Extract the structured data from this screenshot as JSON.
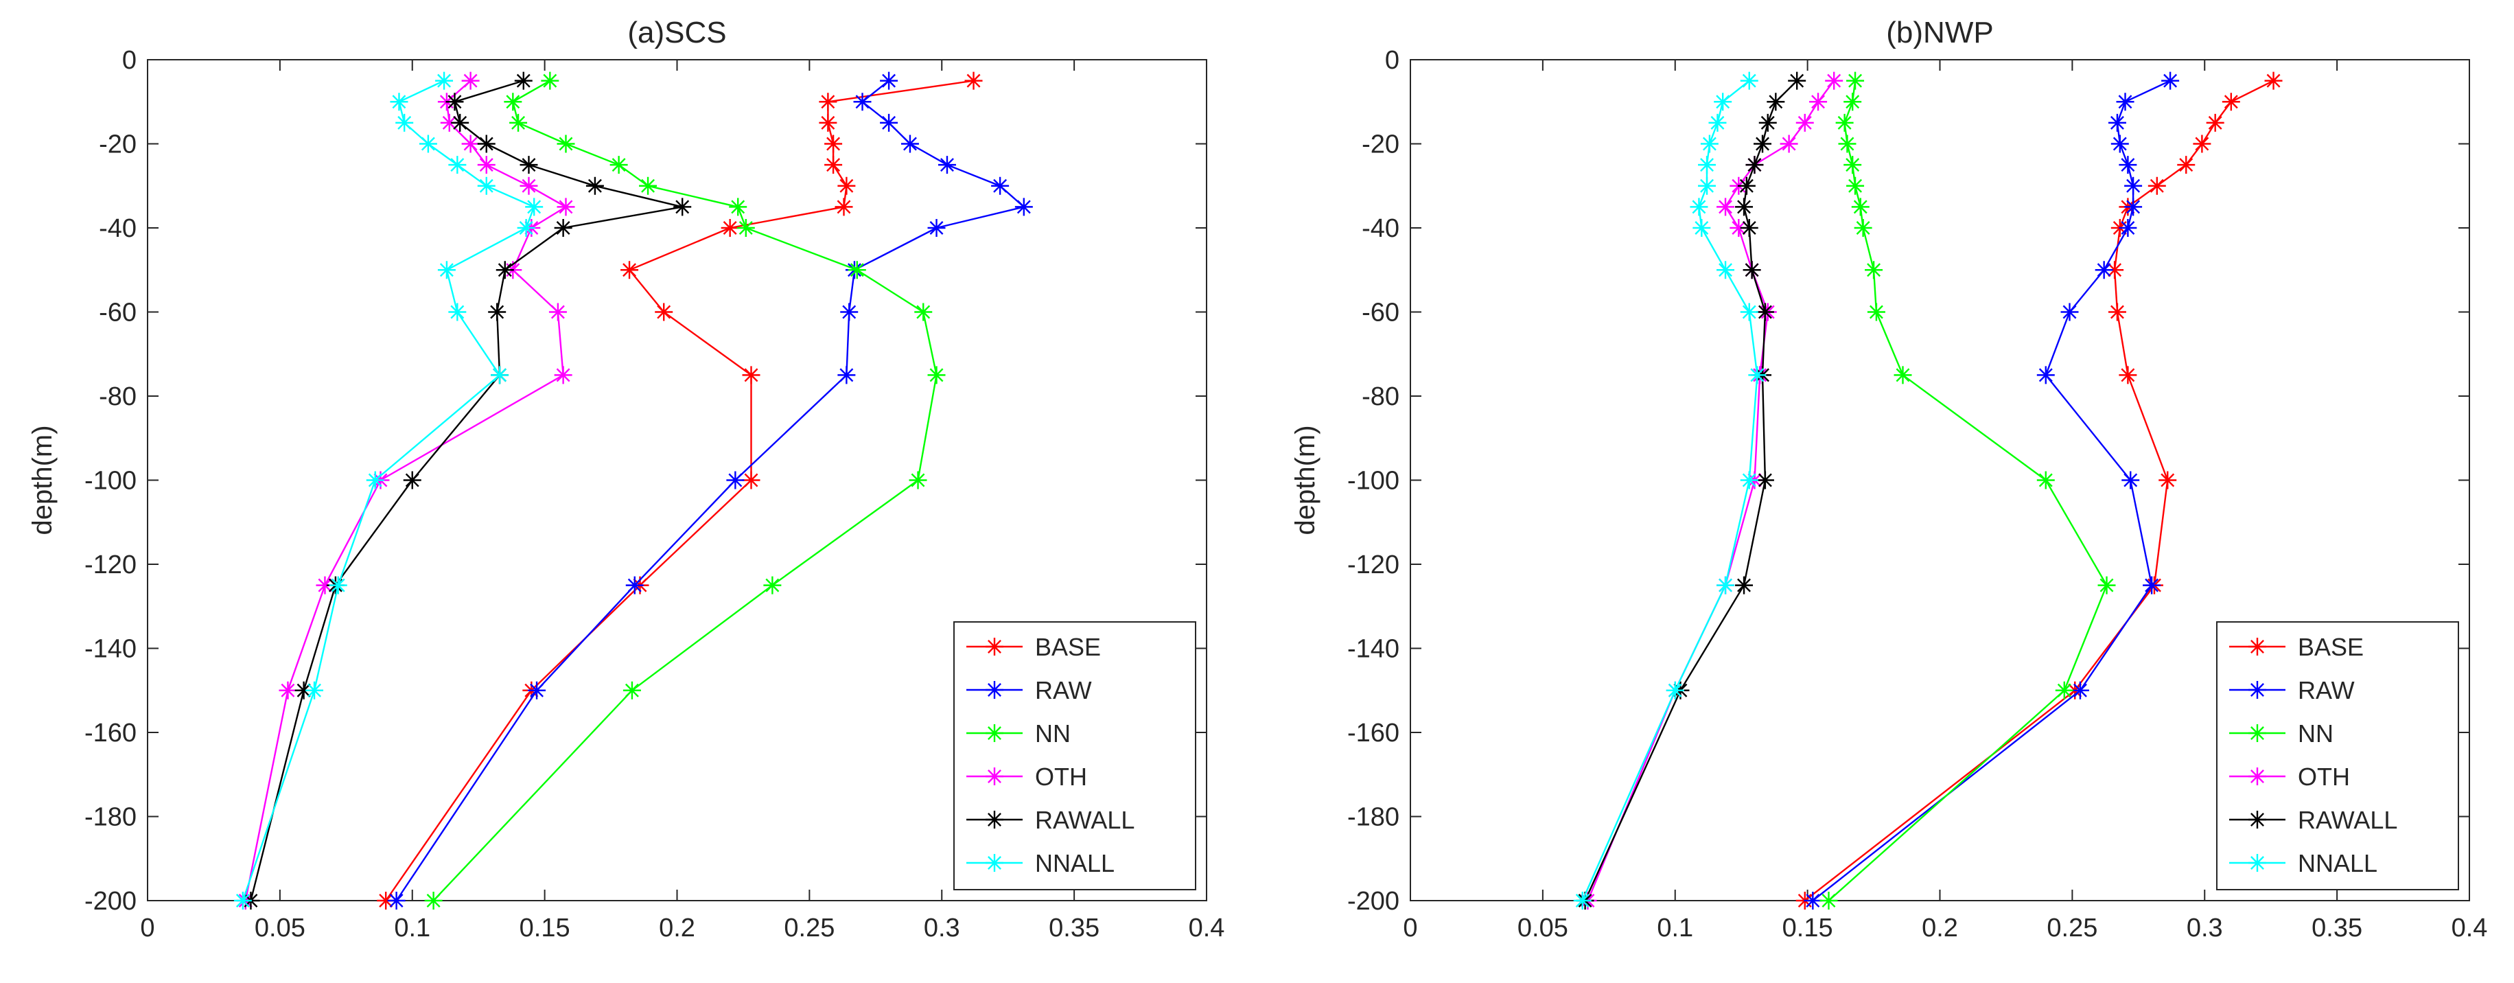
{
  "chart_data": [
    {
      "type": "line",
      "title": "(a)SCS",
      "xlabel": "",
      "ylabel": "depth(m)",
      "xlim": [
        0,
        0.4
      ],
      "ylim": [
        -200,
        0
      ],
      "xticks": [
        0,
        0.05,
        0.1,
        0.15,
        0.2,
        0.25,
        0.3,
        0.35,
        0.4
      ],
      "xtick_labels": [
        "0",
        "0.05",
        "0.1",
        "0.15",
        "0.2",
        "0.25",
        "0.3",
        "0.35",
        "0.4"
      ],
      "yticks": [
        0,
        -20,
        -40,
        -60,
        -80,
        -100,
        -120,
        -140,
        -160,
        -180,
        -200
      ],
      "ytick_labels": [
        "0",
        "-20",
        "-40",
        "-60",
        "-80",
        "-100",
        "-120",
        "-140",
        "-160",
        "-180",
        "-200"
      ],
      "grid": false,
      "legend_position": "bottom-right",
      "marker": "star",
      "series": [
        {
          "name": "BASE",
          "color": "#ff0000",
          "x": [
            0.312,
            0.257,
            0.257,
            0.259,
            0.259,
            0.264,
            0.263,
            0.22,
            0.182,
            0.195,
            0.228,
            0.228,
            0.186,
            0.145,
            0.09
          ],
          "y": [
            -5,
            -10,
            -15,
            -20,
            -25,
            -30,
            -35,
            -40,
            -50,
            -60,
            -75,
            -100,
            -125,
            -150,
            -200
          ]
        },
        {
          "name": "RAW",
          "color": "#0000ff",
          "x": [
            0.28,
            0.27,
            0.28,
            0.288,
            0.302,
            0.322,
            0.331,
            0.298,
            0.267,
            0.265,
            0.264,
            0.222,
            0.184,
            0.147,
            0.094
          ],
          "y": [
            -5,
            -10,
            -15,
            -20,
            -25,
            -30,
            -35,
            -40,
            -50,
            -60,
            -75,
            -100,
            -125,
            -150,
            -200
          ]
        },
        {
          "name": "NN",
          "color": "#00ff00",
          "x": [
            0.152,
            0.138,
            0.14,
            0.158,
            0.178,
            0.189,
            0.223,
            0.226,
            0.268,
            0.293,
            0.298,
            0.291,
            0.236,
            0.183,
            0.108
          ],
          "y": [
            -5,
            -10,
            -15,
            -20,
            -25,
            -30,
            -35,
            -40,
            -50,
            -60,
            -75,
            -100,
            -125,
            -150,
            -200
          ]
        },
        {
          "name": "OTH",
          "color": "#ff00ff",
          "x": [
            0.122,
            0.113,
            0.114,
            0.122,
            0.128,
            0.144,
            0.158,
            0.145,
            0.138,
            0.155,
            0.157,
            0.088,
            0.067,
            0.053,
            0.037
          ],
          "y": [
            -5,
            -10,
            -15,
            -20,
            -25,
            -30,
            -35,
            -40,
            -50,
            -60,
            -75,
            -100,
            -125,
            -150,
            -200
          ]
        },
        {
          "name": "RAWALL",
          "color": "#000000",
          "x": [
            0.142,
            0.116,
            0.118,
            0.128,
            0.144,
            0.169,
            0.202,
            0.157,
            0.135,
            0.132,
            0.133,
            0.1,
            0.071,
            0.059,
            0.039
          ],
          "y": [
            -5,
            -10,
            -15,
            -20,
            -25,
            -30,
            -35,
            -40,
            -50,
            -60,
            -75,
            -100,
            -125,
            -150,
            -200
          ]
        },
        {
          "name": "NNALL",
          "color": "#00ffff",
          "x": [
            0.112,
            0.095,
            0.097,
            0.106,
            0.117,
            0.128,
            0.146,
            0.143,
            0.113,
            0.117,
            0.133,
            0.086,
            0.072,
            0.063,
            0.036
          ],
          "y": [
            -5,
            -10,
            -15,
            -20,
            -25,
            -30,
            -35,
            -40,
            -50,
            -60,
            -75,
            -100,
            -125,
            -150,
            -200
          ]
        }
      ]
    },
    {
      "type": "line",
      "title": "(b)NWP",
      "xlabel": "",
      "ylabel": "depth(m)",
      "xlim": [
        0,
        0.4
      ],
      "ylim": [
        -200,
        0
      ],
      "xticks": [
        0,
        0.05,
        0.1,
        0.15,
        0.2,
        0.25,
        0.3,
        0.35,
        0.4
      ],
      "xtick_labels": [
        "0",
        "0.05",
        "0.1",
        "0.15",
        "0.2",
        "0.25",
        "0.3",
        "0.35",
        "0.4"
      ],
      "yticks": [
        0,
        -20,
        -40,
        -60,
        -80,
        -100,
        -120,
        -140,
        -160,
        -180,
        -200
      ],
      "ytick_labels": [
        "0",
        "-20",
        "-40",
        "-60",
        "-80",
        "-100",
        "-120",
        "-140",
        "-160",
        "-180",
        "-200"
      ],
      "grid": false,
      "legend_position": "bottom-right",
      "marker": "star",
      "series": [
        {
          "name": "BASE",
          "color": "#ff0000",
          "x": [
            0.326,
            0.31,
            0.304,
            0.299,
            0.293,
            0.282,
            0.271,
            0.268,
            0.266,
            0.267,
            0.271,
            0.286,
            0.281,
            0.251,
            0.149
          ],
          "y": [
            -5,
            -10,
            -15,
            -20,
            -25,
            -30,
            -35,
            -40,
            -50,
            -60,
            -75,
            -100,
            -125,
            -150,
            -200
          ]
        },
        {
          "name": "RAW",
          "color": "#0000ff",
          "x": [
            0.287,
            0.27,
            0.267,
            0.268,
            0.271,
            0.273,
            0.273,
            0.271,
            0.262,
            0.249,
            0.24,
            0.272,
            0.28,
            0.253,
            0.152
          ],
          "y": [
            -5,
            -10,
            -15,
            -20,
            -25,
            -30,
            -35,
            -40,
            -50,
            -60,
            -75,
            -100,
            -125,
            -150,
            -200
          ]
        },
        {
          "name": "NN",
          "color": "#00ff00",
          "x": [
            0.168,
            0.167,
            0.164,
            0.165,
            0.167,
            0.168,
            0.17,
            0.171,
            0.175,
            0.176,
            0.186,
            0.24,
            0.263,
            0.247,
            0.158
          ],
          "y": [
            -5,
            -10,
            -15,
            -20,
            -25,
            -30,
            -35,
            -40,
            -50,
            -60,
            -75,
            -100,
            -125,
            -150,
            -200
          ]
        },
        {
          "name": "OTH",
          "color": "#ff00ff",
          "x": [
            0.16,
            0.154,
            0.149,
            0.143,
            0.13,
            0.124,
            0.119,
            0.124,
            0.129,
            0.135,
            0.132,
            0.13,
            0.119,
            0.1,
            0.067
          ],
          "y": [
            -5,
            -10,
            -15,
            -20,
            -25,
            -30,
            -35,
            -40,
            -50,
            -60,
            -75,
            -100,
            -125,
            -150,
            -200
          ]
        },
        {
          "name": "RAWALL",
          "color": "#000000",
          "x": [
            0.146,
            0.138,
            0.135,
            0.133,
            0.13,
            0.127,
            0.126,
            0.128,
            0.129,
            0.134,
            0.133,
            0.134,
            0.126,
            0.102,
            0.066
          ],
          "y": [
            -5,
            -10,
            -15,
            -20,
            -25,
            -30,
            -35,
            -40,
            -50,
            -60,
            -75,
            -100,
            -125,
            -150,
            -200
          ]
        },
        {
          "name": "NNALL",
          "color": "#00ffff",
          "x": [
            0.128,
            0.118,
            0.116,
            0.113,
            0.112,
            0.112,
            0.109,
            0.11,
            0.119,
            0.128,
            0.131,
            0.128,
            0.119,
            0.1,
            0.065
          ],
          "y": [
            -5,
            -10,
            -15,
            -20,
            -25,
            -30,
            -35,
            -40,
            -50,
            -60,
            -75,
            -100,
            -125,
            -150,
            -200
          ]
        }
      ]
    }
  ]
}
